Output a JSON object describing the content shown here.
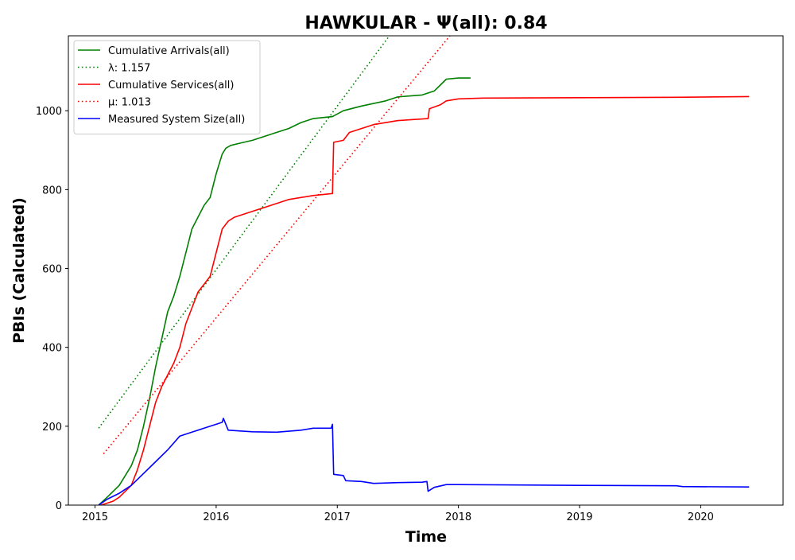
{
  "chart_data": {
    "type": "line",
    "title": "HAWKULAR -  Ψ(all): 0.84",
    "xlabel": "Time",
    "ylabel": "PBIs (Calculated)",
    "xlim": [
      2014.78,
      2020.68
    ],
    "ylim": [
      0,
      1190
    ],
    "xticks": [
      2015,
      2016,
      2017,
      2018,
      2019,
      2020
    ],
    "xtick_labels": [
      "2015",
      "2016",
      "2017",
      "2018",
      "2019",
      "2020"
    ],
    "yticks": [
      0,
      200,
      400,
      600,
      800,
      1000
    ],
    "ytick_labels": [
      "0",
      "200",
      "400",
      "600",
      "800",
      "1000"
    ],
    "grid": false,
    "legend_position": "top-left",
    "series": [
      {
        "name": "Cumulative Arrivals(all)",
        "style": "solid",
        "color": "#008000",
        "x": [
          2015.03,
          2015.1,
          2015.2,
          2015.3,
          2015.35,
          2015.4,
          2015.45,
          2015.5,
          2015.55,
          2015.6,
          2015.65,
          2015.7,
          2015.75,
          2015.8,
          2015.85,
          2015.9,
          2015.95,
          2016.0,
          2016.05,
          2016.08,
          2016.12,
          2016.2,
          2016.3,
          2016.45,
          2016.6,
          2016.7,
          2016.8,
          2016.96,
          2017.05,
          2017.2,
          2017.4,
          2017.5,
          2017.7,
          2017.8,
          2017.85,
          2017.9,
          2018.0,
          2018.1
        ],
        "values": [
          0,
          20,
          50,
          100,
          140,
          200,
          270,
          350,
          420,
          490,
          530,
          580,
          640,
          700,
          730,
          760,
          780,
          840,
          890,
          905,
          912,
          918,
          925,
          940,
          955,
          970,
          980,
          985,
          1000,
          1012,
          1025,
          1035,
          1040,
          1050,
          1065,
          1080,
          1083,
          1083
        ]
      },
      {
        "name": "λ: 1.157",
        "style": "dotted",
        "color": "#008000",
        "x": [
          2015.03,
          2017.43
        ],
        "values": [
          195,
          1190
        ]
      },
      {
        "name": "Cumulative Services(all)",
        "style": "solid",
        "color": "#ff0000",
        "x": [
          2015.05,
          2015.15,
          2015.2,
          2015.3,
          2015.35,
          2015.4,
          2015.45,
          2015.5,
          2015.55,
          2015.6,
          2015.65,
          2015.7,
          2015.75,
          2015.8,
          2015.85,
          2015.9,
          2015.95,
          2016.0,
          2016.05,
          2016.1,
          2016.15,
          2016.25,
          2016.4,
          2016.5,
          2016.6,
          2016.8,
          2016.96,
          2016.97,
          2017.05,
          2017.1,
          2017.3,
          2017.5,
          2017.75,
          2017.76,
          2017.85,
          2017.9,
          2018.0,
          2018.2,
          2019.0,
          2019.8,
          2020.4
        ],
        "values": [
          0,
          10,
          20,
          50,
          90,
          140,
          200,
          260,
          300,
          330,
          360,
          400,
          460,
          500,
          540,
          560,
          580,
          640,
          700,
          720,
          730,
          740,
          755,
          765,
          775,
          785,
          790,
          920,
          925,
          945,
          965,
          975,
          980,
          1005,
          1015,
          1025,
          1030,
          1032,
          1033,
          1034,
          1036
        ]
      },
      {
        "name": "μ: 1.013",
        "style": "dotted",
        "color": "#ff0000",
        "x": [
          2015.07,
          2017.93
        ],
        "values": [
          130,
          1190
        ]
      },
      {
        "name": "Measured System Size(all)",
        "style": "solid",
        "color": "#0000ff",
        "x": [
          2015.03,
          2015.1,
          2015.2,
          2015.3,
          2015.4,
          2015.5,
          2015.6,
          2015.7,
          2015.8,
          2015.9,
          2016.0,
          2016.05,
          2016.06,
          2016.1,
          2016.2,
          2016.3,
          2016.5,
          2016.7,
          2016.8,
          2016.95,
          2016.96,
          2016.97,
          2017.05,
          2017.07,
          2017.2,
          2017.3,
          2017.5,
          2017.7,
          2017.74,
          2017.75,
          2017.8,
          2017.9,
          2018.0,
          2018.5,
          2019.0,
          2019.8,
          2019.85,
          2020.4
        ],
        "values": [
          0,
          15,
          30,
          50,
          80,
          110,
          140,
          175,
          185,
          195,
          205,
          210,
          220,
          190,
          188,
          186,
          185,
          190,
          195,
          195,
          205,
          78,
          75,
          62,
          60,
          55,
          57,
          58,
          60,
          35,
          45,
          52,
          52,
          51,
          50,
          49,
          47,
          46
        ]
      }
    ]
  }
}
